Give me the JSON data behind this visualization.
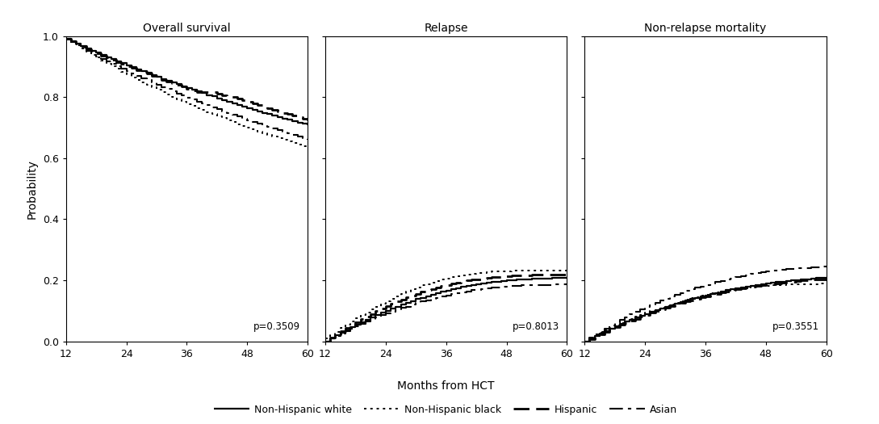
{
  "titles": [
    "Overall survival",
    "Relapse",
    "Non-relapse mortality"
  ],
  "p_values": [
    "p=0.3509",
    "p=0.8013",
    "p=0.3551"
  ],
  "xlabel": "Months from HCT",
  "ylabel": "Probability",
  "xlim": [
    12,
    60
  ],
  "xticks": [
    12,
    24,
    36,
    48,
    60
  ],
  "ylim_os": [
    0.0,
    1.0
  ],
  "ylim_cr": [
    0.0,
    1.0
  ],
  "yticks": [
    0.0,
    0.2,
    0.4,
    0.6,
    0.8,
    1.0
  ],
  "color": "#000000",
  "os": {
    "white": {
      "x": [
        12,
        13,
        14,
        15,
        16,
        17,
        18,
        19,
        20,
        21,
        22,
        23,
        24,
        25,
        26,
        27,
        28,
        29,
        30,
        31,
        32,
        33,
        34,
        35,
        36,
        37,
        38,
        39,
        40,
        41,
        42,
        43,
        44,
        45,
        46,
        47,
        48,
        49,
        50,
        51,
        52,
        53,
        54,
        55,
        56,
        57,
        58,
        59,
        60
      ],
      "y": [
        0.99,
        0.983,
        0.975,
        0.967,
        0.96,
        0.952,
        0.945,
        0.938,
        0.931,
        0.924,
        0.917,
        0.911,
        0.904,
        0.898,
        0.891,
        0.885,
        0.879,
        0.872,
        0.866,
        0.86,
        0.854,
        0.848,
        0.842,
        0.836,
        0.83,
        0.824,
        0.819,
        0.813,
        0.807,
        0.802,
        0.796,
        0.791,
        0.785,
        0.78,
        0.775,
        0.77,
        0.764,
        0.759,
        0.754,
        0.749,
        0.745,
        0.74,
        0.735,
        0.73,
        0.726,
        0.721,
        0.717,
        0.712,
        0.708
      ]
    },
    "black": {
      "x": [
        12,
        13,
        14,
        15,
        16,
        17,
        18,
        19,
        20,
        21,
        22,
        23,
        24,
        25,
        26,
        27,
        28,
        29,
        30,
        31,
        32,
        33,
        34,
        35,
        36,
        37,
        38,
        39,
        40,
        41,
        42,
        43,
        44,
        45,
        46,
        47,
        48,
        49,
        50,
        51,
        52,
        53,
        54,
        55,
        56,
        57,
        58,
        59,
        60
      ],
      "y": [
        0.99,
        0.98,
        0.969,
        0.959,
        0.949,
        0.939,
        0.929,
        0.919,
        0.91,
        0.901,
        0.892,
        0.883,
        0.874,
        0.865,
        0.857,
        0.848,
        0.84,
        0.832,
        0.824,
        0.816,
        0.808,
        0.8,
        0.793,
        0.786,
        0.778,
        0.771,
        0.764,
        0.757,
        0.75,
        0.744,
        0.737,
        0.731,
        0.724,
        0.718,
        0.711,
        0.706,
        0.7,
        0.694,
        0.688,
        0.682,
        0.677,
        0.671,
        0.666,
        0.66,
        0.655,
        0.65,
        0.645,
        0.64,
        0.635
      ]
    },
    "hispanic": {
      "x": [
        12,
        13,
        14,
        15,
        16,
        17,
        18,
        19,
        20,
        21,
        22,
        23,
        24,
        25,
        26,
        27,
        28,
        29,
        30,
        31,
        32,
        33,
        34,
        35,
        36,
        37,
        38,
        39,
        40,
        41,
        42,
        43,
        44,
        44,
        45,
        46,
        47,
        47,
        48,
        48,
        49,
        50,
        51,
        52,
        53,
        54,
        55,
        56,
        57,
        58,
        59,
        60
      ],
      "y": [
        0.99,
        0.982,
        0.974,
        0.966,
        0.958,
        0.951,
        0.943,
        0.936,
        0.929,
        0.922,
        0.915,
        0.908,
        0.902,
        0.895,
        0.889,
        0.882,
        0.876,
        0.87,
        0.863,
        0.857,
        0.851,
        0.845,
        0.839,
        0.834,
        0.828,
        0.822,
        0.817,
        0.817,
        0.817,
        0.817,
        0.812,
        0.806,
        0.806,
        0.8,
        0.8,
        0.795,
        0.795,
        0.789,
        0.789,
        0.784,
        0.779,
        0.774,
        0.769,
        0.764,
        0.759,
        0.754,
        0.749,
        0.744,
        0.739,
        0.734,
        0.729,
        0.724
      ]
    },
    "asian": {
      "x": [
        12,
        13,
        14,
        15,
        16,
        17,
        18,
        19,
        20,
        21,
        22,
        23,
        24,
        25,
        26,
        27,
        28,
        29,
        30,
        31,
        32,
        33,
        34,
        35,
        36,
        37,
        38,
        39,
        40,
        41,
        42,
        43,
        44,
        45,
        46,
        47,
        48,
        49,
        50,
        51,
        52,
        53,
        54,
        55,
        56,
        57,
        58,
        59,
        60
      ],
      "y": [
        0.99,
        0.98,
        0.97,
        0.961,
        0.952,
        0.943,
        0.934,
        0.926,
        0.917,
        0.909,
        0.901,
        0.893,
        0.885,
        0.877,
        0.87,
        0.862,
        0.855,
        0.848,
        0.84,
        0.833,
        0.826,
        0.819,
        0.812,
        0.806,
        0.799,
        0.792,
        0.786,
        0.779,
        0.773,
        0.767,
        0.76,
        0.754,
        0.748,
        0.742,
        0.736,
        0.73,
        0.725,
        0.719,
        0.713,
        0.708,
        0.702,
        0.697,
        0.691,
        0.686,
        0.681,
        0.676,
        0.671,
        0.666,
        0.661
      ]
    }
  },
  "relapse": {
    "white": {
      "x": [
        12,
        13,
        14,
        15,
        16,
        17,
        18,
        19,
        20,
        21,
        22,
        23,
        24,
        25,
        26,
        27,
        28,
        29,
        30,
        31,
        32,
        33,
        34,
        35,
        36,
        37,
        38,
        39,
        40,
        41,
        42,
        43,
        44,
        45,
        46,
        47,
        48,
        49,
        50,
        51,
        52,
        53,
        54,
        55,
        56,
        57,
        58,
        59,
        60
      ],
      "y": [
        0.0,
        0.01,
        0.019,
        0.028,
        0.037,
        0.046,
        0.054,
        0.062,
        0.07,
        0.078,
        0.085,
        0.093,
        0.1,
        0.107,
        0.114,
        0.12,
        0.126,
        0.132,
        0.138,
        0.143,
        0.148,
        0.153,
        0.158,
        0.162,
        0.166,
        0.17,
        0.174,
        0.178,
        0.181,
        0.184,
        0.187,
        0.19,
        0.192,
        0.194,
        0.196,
        0.198,
        0.2,
        0.201,
        0.202,
        0.203,
        0.204,
        0.205,
        0.205,
        0.206,
        0.206,
        0.207,
        0.207,
        0.207,
        0.208
      ]
    },
    "black": {
      "x": [
        12,
        13,
        14,
        15,
        16,
        17,
        18,
        19,
        20,
        21,
        22,
        23,
        24,
        25,
        26,
        27,
        28,
        29,
        30,
        31,
        32,
        33,
        34,
        35,
        36,
        37,
        38,
        39,
        40,
        41,
        42,
        43,
        44,
        45,
        46,
        47,
        48,
        49,
        50,
        51,
        52,
        53,
        54,
        55,
        56,
        57,
        58,
        59,
        60
      ],
      "y": [
        0.01,
        0.021,
        0.032,
        0.043,
        0.054,
        0.065,
        0.075,
        0.085,
        0.095,
        0.105,
        0.114,
        0.123,
        0.132,
        0.14,
        0.148,
        0.156,
        0.163,
        0.17,
        0.177,
        0.183,
        0.188,
        0.193,
        0.198,
        0.202,
        0.206,
        0.21,
        0.213,
        0.216,
        0.219,
        0.221,
        0.223,
        0.225,
        0.226,
        0.228,
        0.229,
        0.23,
        0.23,
        0.231,
        0.231,
        0.231,
        0.232,
        0.232,
        0.232,
        0.232,
        0.232,
        0.232,
        0.232,
        0.232,
        0.232
      ]
    },
    "hispanic": {
      "x": [
        12,
        13,
        14,
        15,
        16,
        17,
        18,
        19,
        20,
        21,
        22,
        23,
        24,
        25,
        26,
        27,
        28,
        29,
        30,
        31,
        32,
        33,
        34,
        35,
        36,
        37,
        38,
        39,
        40,
        41,
        42,
        43,
        44,
        45,
        46,
        47,
        48,
        49,
        50,
        51,
        52,
        53,
        54,
        55,
        56,
        57,
        58,
        59,
        60
      ],
      "y": [
        0.0,
        0.011,
        0.022,
        0.033,
        0.043,
        0.053,
        0.063,
        0.072,
        0.081,
        0.09,
        0.099,
        0.107,
        0.115,
        0.123,
        0.13,
        0.137,
        0.144,
        0.15,
        0.156,
        0.162,
        0.167,
        0.172,
        0.177,
        0.181,
        0.185,
        0.189,
        0.193,
        0.196,
        0.199,
        0.202,
        0.204,
        0.206,
        0.208,
        0.21,
        0.211,
        0.213,
        0.214,
        0.215,
        0.216,
        0.217,
        0.217,
        0.218,
        0.218,
        0.218,
        0.219,
        0.219,
        0.219,
        0.219,
        0.22
      ]
    },
    "asian": {
      "x": [
        12,
        13,
        14,
        15,
        16,
        17,
        18,
        19,
        20,
        21,
        22,
        23,
        24,
        25,
        26,
        27,
        28,
        29,
        30,
        31,
        32,
        33,
        34,
        35,
        36,
        37,
        38,
        39,
        40,
        41,
        42,
        43,
        44,
        45,
        46,
        47,
        48,
        49,
        50,
        51,
        52,
        53,
        54,
        55,
        56,
        57,
        58,
        59,
        60
      ],
      "y": [
        0.0,
        0.009,
        0.017,
        0.026,
        0.034,
        0.042,
        0.05,
        0.057,
        0.064,
        0.071,
        0.078,
        0.085,
        0.091,
        0.097,
        0.103,
        0.109,
        0.114,
        0.12,
        0.125,
        0.13,
        0.134,
        0.139,
        0.143,
        0.147,
        0.151,
        0.154,
        0.158,
        0.161,
        0.164,
        0.167,
        0.169,
        0.172,
        0.174,
        0.176,
        0.177,
        0.179,
        0.18,
        0.181,
        0.182,
        0.183,
        0.184,
        0.184,
        0.185,
        0.185,
        0.185,
        0.186,
        0.186,
        0.186,
        0.187
      ]
    }
  },
  "nrm": {
    "white": {
      "x": [
        12,
        13,
        14,
        15,
        16,
        17,
        18,
        19,
        20,
        21,
        22,
        23,
        24,
        25,
        26,
        27,
        28,
        29,
        30,
        31,
        32,
        33,
        34,
        35,
        36,
        37,
        38,
        39,
        40,
        41,
        42,
        43,
        44,
        45,
        46,
        47,
        48,
        49,
        50,
        51,
        52,
        53,
        54,
        55,
        56,
        57,
        58,
        59,
        60
      ],
      "y": [
        0.0,
        0.009,
        0.018,
        0.026,
        0.034,
        0.042,
        0.05,
        0.057,
        0.064,
        0.071,
        0.078,
        0.084,
        0.09,
        0.096,
        0.102,
        0.108,
        0.113,
        0.119,
        0.124,
        0.129,
        0.134,
        0.138,
        0.143,
        0.147,
        0.151,
        0.155,
        0.159,
        0.163,
        0.167,
        0.17,
        0.173,
        0.176,
        0.179,
        0.182,
        0.185,
        0.187,
        0.19,
        0.192,
        0.194,
        0.196,
        0.198,
        0.2,
        0.201,
        0.203,
        0.204,
        0.206,
        0.207,
        0.208,
        0.209
      ]
    },
    "black": {
      "x": [
        12,
        13,
        14,
        15,
        16,
        17,
        18,
        19,
        20,
        21,
        22,
        23,
        24,
        25,
        26,
        27,
        28,
        29,
        30,
        31,
        32,
        33,
        34,
        35,
        36,
        37,
        38,
        39,
        40,
        41,
        42,
        43,
        44,
        45,
        46,
        47,
        48,
        49,
        50,
        51,
        52,
        53,
        54,
        55,
        56,
        57,
        58,
        59,
        60
      ],
      "y": [
        0.0,
        0.009,
        0.018,
        0.027,
        0.035,
        0.043,
        0.051,
        0.059,
        0.066,
        0.073,
        0.08,
        0.087,
        0.093,
        0.099,
        0.105,
        0.111,
        0.116,
        0.122,
        0.127,
        0.132,
        0.136,
        0.141,
        0.145,
        0.149,
        0.153,
        0.157,
        0.16,
        0.163,
        0.166,
        0.169,
        0.172,
        0.174,
        0.176,
        0.178,
        0.179,
        0.181,
        0.182,
        0.183,
        0.184,
        0.185,
        0.186,
        0.186,
        0.187,
        0.187,
        0.188,
        0.188,
        0.188,
        0.189,
        0.189
      ]
    },
    "hispanic": {
      "x": [
        12,
        13,
        14,
        15,
        16,
        17,
        18,
        19,
        20,
        21,
        22,
        23,
        24,
        25,
        26,
        27,
        28,
        29,
        30,
        31,
        32,
        33,
        34,
        35,
        36,
        37,
        38,
        39,
        40,
        41,
        42,
        43,
        44,
        45,
        46,
        47,
        48,
        49,
        50,
        51,
        52,
        53,
        54,
        55,
        56,
        57,
        58,
        59,
        60
      ],
      "y": [
        0.0,
        0.008,
        0.016,
        0.024,
        0.032,
        0.04,
        0.047,
        0.054,
        0.061,
        0.068,
        0.074,
        0.081,
        0.087,
        0.093,
        0.099,
        0.105,
        0.11,
        0.116,
        0.121,
        0.126,
        0.131,
        0.135,
        0.14,
        0.144,
        0.148,
        0.152,
        0.156,
        0.16,
        0.163,
        0.167,
        0.17,
        0.173,
        0.176,
        0.178,
        0.181,
        0.183,
        0.186,
        0.188,
        0.19,
        0.192,
        0.194,
        0.196,
        0.197,
        0.199,
        0.2,
        0.202,
        0.203,
        0.204,
        0.205
      ]
    },
    "asian": {
      "x": [
        12,
        13,
        14,
        15,
        16,
        17,
        18,
        19,
        20,
        21,
        22,
        23,
        24,
        25,
        26,
        27,
        28,
        29,
        30,
        31,
        32,
        33,
        34,
        35,
        36,
        37,
        38,
        39,
        40,
        41,
        42,
        43,
        44,
        45,
        46,
        47,
        48,
        49,
        50,
        51,
        52,
        53,
        54,
        55,
        56,
        57,
        58,
        59,
        60
      ],
      "y": [
        0.0,
        0.011,
        0.022,
        0.032,
        0.042,
        0.052,
        0.061,
        0.07,
        0.079,
        0.088,
        0.096,
        0.104,
        0.112,
        0.119,
        0.127,
        0.134,
        0.14,
        0.147,
        0.153,
        0.159,
        0.165,
        0.17,
        0.175,
        0.18,
        0.185,
        0.19,
        0.194,
        0.198,
        0.202,
        0.206,
        0.21,
        0.213,
        0.217,
        0.22,
        0.223,
        0.226,
        0.228,
        0.231,
        0.233,
        0.235,
        0.236,
        0.238,
        0.239,
        0.24,
        0.241,
        0.242,
        0.243,
        0.244,
        0.245
      ]
    }
  }
}
